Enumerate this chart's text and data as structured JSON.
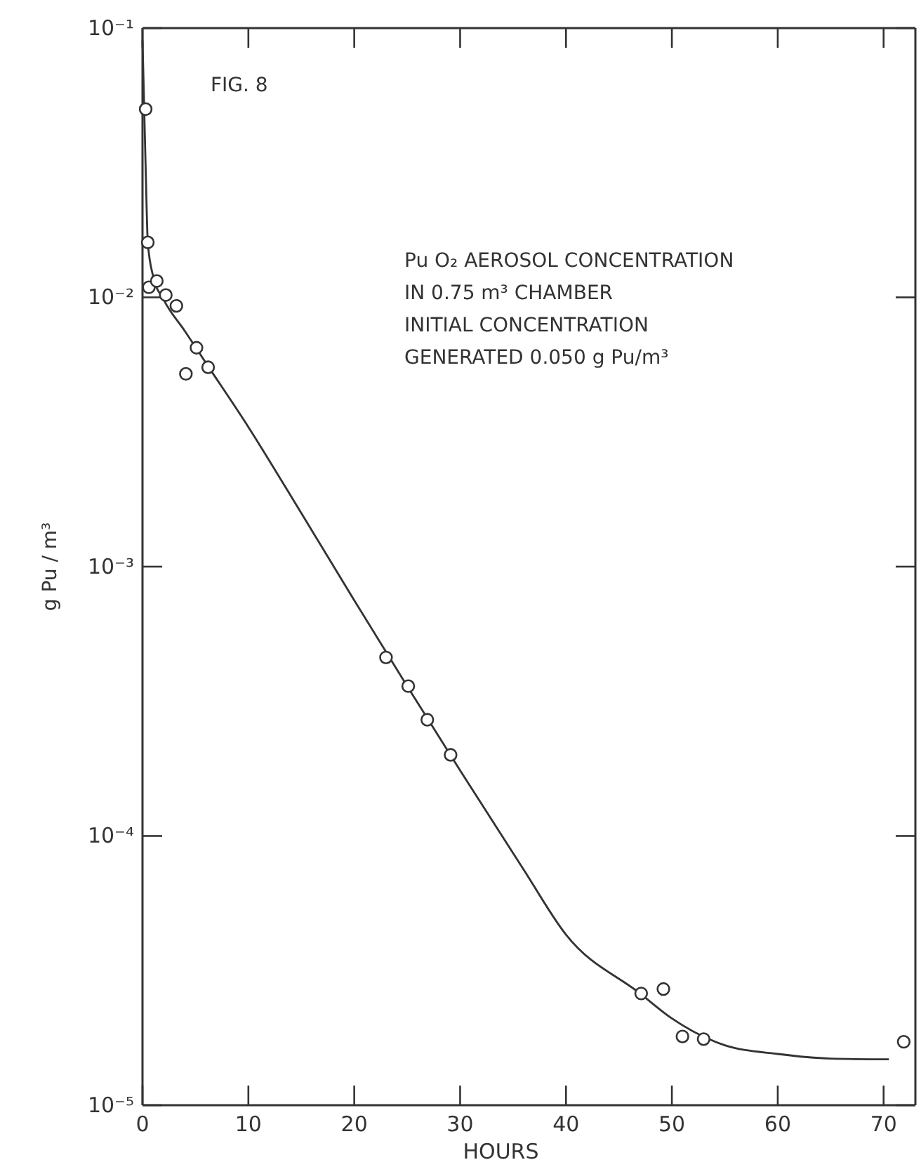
{
  "chart_data": {
    "type": "scatter",
    "xlabel": "HOURS",
    "ylabel": "g Pu / m³",
    "log": "y",
    "annotations": [
      "FIG. 8",
      "Pu O₂ AEROSOL  CONCENTRATION",
      "IN  0.75  m³  CHAMBER",
      "INITIAL CONCENTRATION",
      "GENERATED  0.050  g  Pu/m³"
    ],
    "xlim": [
      0,
      73
    ],
    "xticks": [
      0,
      10,
      20,
      30,
      40,
      50,
      60,
      70
    ],
    "ylim": [
      1e-05,
      0.1
    ],
    "yticks": [
      {
        "value": 1e-05,
        "label": "10⁻⁵"
      },
      {
        "value": 0.0001,
        "label": "10⁻⁴"
      },
      {
        "value": 0.001,
        "label": "10⁻³"
      },
      {
        "value": 0.01,
        "label": "10⁻²"
      },
      {
        "value": 0.1,
        "label": "10⁻¹"
      }
    ],
    "grid": false,
    "series": [
      {
        "marker": "circle",
        "color": "#333333",
        "x": [
          0.3,
          0.5,
          0.6,
          1.35,
          2.2,
          3.2,
          4.1,
          5.1,
          6.2,
          23,
          25.1,
          26.9,
          29.1,
          47.1,
          49.2,
          51,
          53,
          71.9
        ],
        "values": [
          0.05,
          0.016,
          0.0109,
          0.0115,
          0.0102,
          0.0093,
          0.0052,
          0.0065,
          0.0055,
          0.00046,
          0.00036,
          0.00027,
          0.0002,
          2.6e-05,
          2.7e-05,
          1.8e-05,
          1.76e-05,
          1.72e-05
        ]
      },
      {
        "type": "line",
        "line_style": "solid",
        "color": "#333333",
        "x": [
          0,
          0.3,
          0.5,
          1,
          2,
          4,
          6,
          10,
          15,
          20,
          25,
          30,
          36,
          40,
          47,
          50,
          55,
          60,
          65,
          70.5
        ],
        "values": [
          0.09,
          0.03,
          0.016,
          0.012,
          0.0098,
          0.0075,
          0.0057,
          0.0033,
          0.00158,
          0.00075,
          0.00036,
          0.000175,
          7.5e-05,
          4.3e-05,
          2.6e-05,
          2.1e-05,
          1.67e-05,
          1.55e-05,
          1.49e-05,
          1.48e-05
        ]
      }
    ]
  }
}
